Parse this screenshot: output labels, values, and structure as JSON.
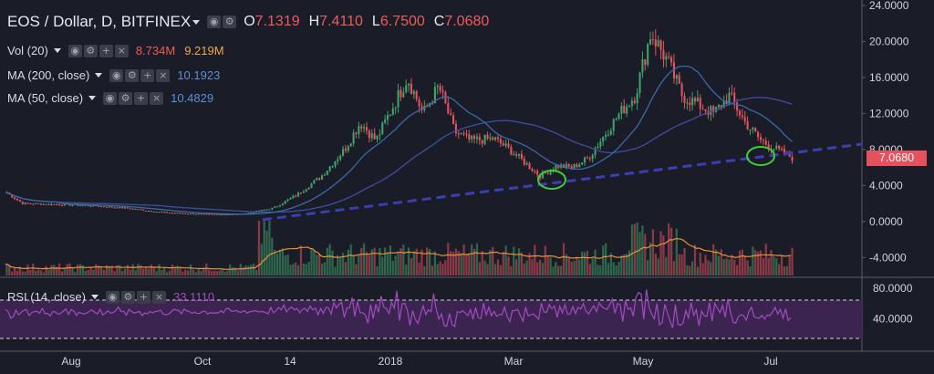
{
  "header": {
    "title": "EOS / Dollar, D, BITFINEX",
    "ohlc": {
      "o_label": "O",
      "o": "7.1319",
      "h_label": "H",
      "h": "7.4110",
      "l_label": "L",
      "l": "6.7500",
      "c_label": "C",
      "c": "7.0680"
    }
  },
  "indicators": [
    {
      "name": "Vol (20)",
      "values": [
        "8.734M",
        "9.219M"
      ],
      "value_colors": [
        "#ef5b5b",
        "#f0a64a"
      ]
    },
    {
      "name": "MA (200, close)",
      "values": [
        "10.1923"
      ],
      "value_colors": [
        "#5b8fd6"
      ]
    },
    {
      "name": "MA (50, close)",
      "values": [
        "10.4829"
      ],
      "value_colors": [
        "#5b8fd6"
      ]
    }
  ],
  "rsi": {
    "name": "RSI (14, close)",
    "value": "33.1110",
    "upper": "80.0000",
    "lower": "40.0000",
    "levels": [
      70,
      30
    ]
  },
  "price_axis": [
    "24.0000",
    "20.0000",
    "16.0000",
    "12.0000",
    "8.0000",
    "4.0000",
    "0.0000",
    "-4.0000"
  ],
  "last_price": "7.0680",
  "time_axis": [
    "Aug",
    "Oct",
    "14",
    "2018",
    "Mar",
    "May",
    "Jul"
  ],
  "colors": {
    "up": "#3fa36a",
    "down": "#e5525e",
    "ma200": "#3e4fa0",
    "ma50": "#3a6aa8",
    "trendline": "#3a3fb5",
    "rsi": "#a24bc0",
    "vol_ma": "#e8913a",
    "circle": "#3fcf3a"
  },
  "chart_data": {
    "type": "candlestick",
    "y_range": [
      -6,
      24
    ],
    "close_series": [
      {
        "t": 0,
        "v": 3.2
      },
      {
        "t": 0.02,
        "v": 2.0
      },
      {
        "t": 0.06,
        "v": 1.9
      },
      {
        "t": 0.1,
        "v": 1.8
      },
      {
        "t": 0.15,
        "v": 1.5
      },
      {
        "t": 0.2,
        "v": 1.0
      },
      {
        "t": 0.25,
        "v": 0.8
      },
      {
        "t": 0.3,
        "v": 0.8
      },
      {
        "t": 0.34,
        "v": 1.5
      },
      {
        "t": 0.37,
        "v": 3.0
      },
      {
        "t": 0.4,
        "v": 5.0
      },
      {
        "t": 0.43,
        "v": 8.0
      },
      {
        "t": 0.45,
        "v": 11.0
      },
      {
        "t": 0.47,
        "v": 9.0
      },
      {
        "t": 0.49,
        "v": 12.5
      },
      {
        "t": 0.51,
        "v": 16.0
      },
      {
        "t": 0.53,
        "v": 12.0
      },
      {
        "t": 0.55,
        "v": 15.0
      },
      {
        "t": 0.57,
        "v": 10.0
      },
      {
        "t": 0.59,
        "v": 9.0
      },
      {
        "t": 0.62,
        "v": 9.2
      },
      {
        "t": 0.64,
        "v": 8.0
      },
      {
        "t": 0.66,
        "v": 6.5
      },
      {
        "t": 0.68,
        "v": 5.0
      },
      {
        "t": 0.7,
        "v": 6.2
      },
      {
        "t": 0.72,
        "v": 6.0
      },
      {
        "t": 0.74,
        "v": 7.0
      },
      {
        "t": 0.76,
        "v": 9.5
      },
      {
        "t": 0.78,
        "v": 12.0
      },
      {
        "t": 0.8,
        "v": 14.0
      },
      {
        "t": 0.82,
        "v": 21.0
      },
      {
        "t": 0.84,
        "v": 18.0
      },
      {
        "t": 0.86,
        "v": 14.0
      },
      {
        "t": 0.88,
        "v": 13.0
      },
      {
        "t": 0.9,
        "v": 12.0
      },
      {
        "t": 0.92,
        "v": 14.0
      },
      {
        "t": 0.94,
        "v": 11.0
      },
      {
        "t": 0.96,
        "v": 9.0
      },
      {
        "t": 0.98,
        "v": 8.0
      },
      {
        "t": 1.0,
        "v": 7.07
      }
    ]
  }
}
